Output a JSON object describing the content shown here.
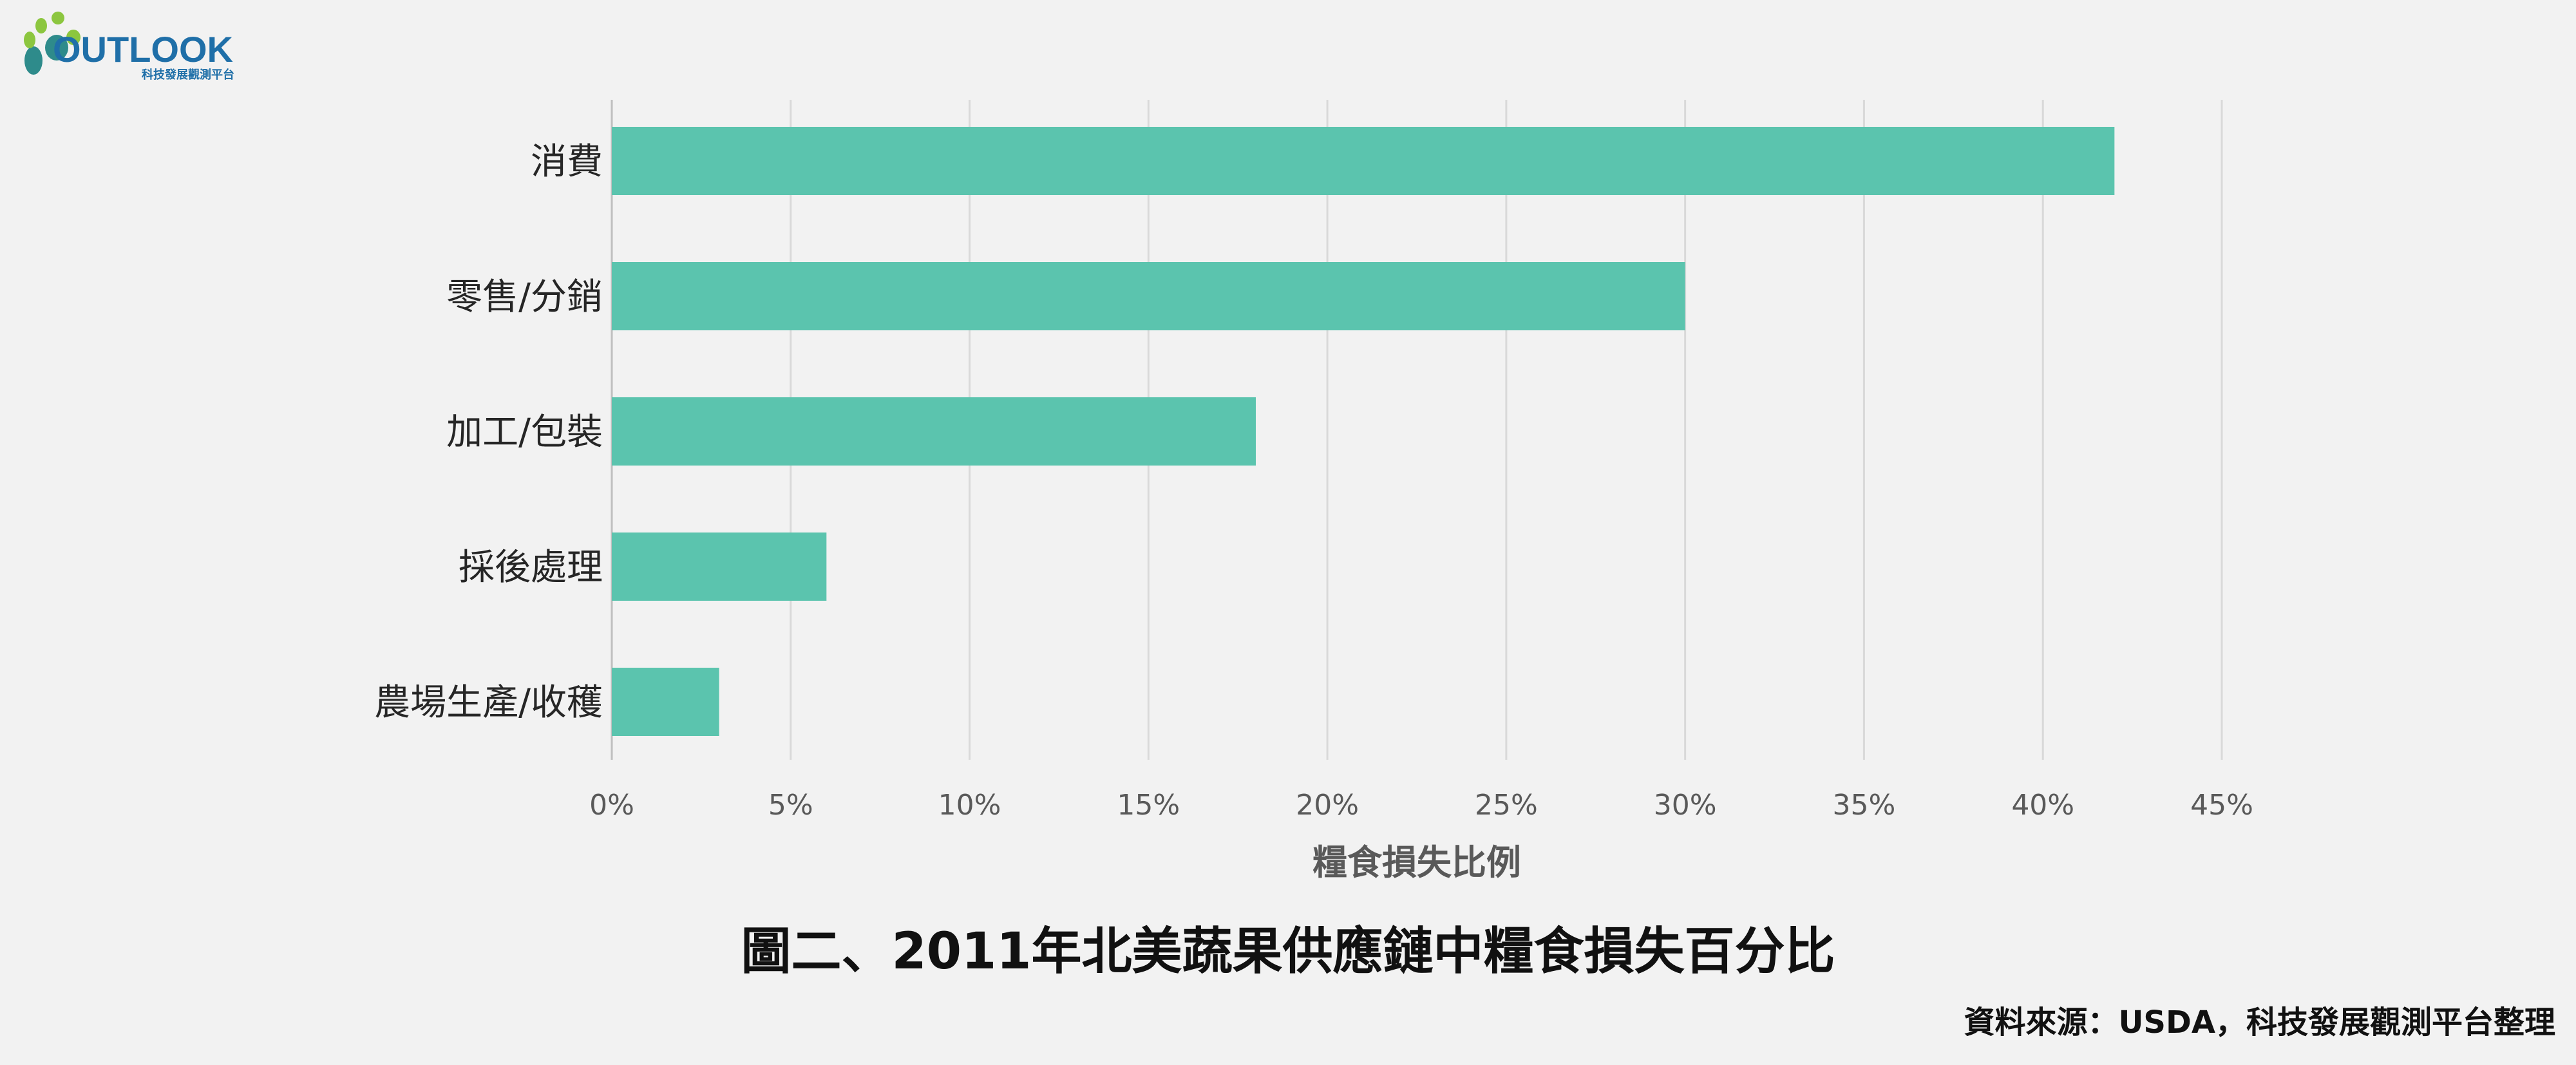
{
  "logo": {
    "wordmark": "OUTLOOK",
    "tagline": "科技發展觀測平台",
    "colors": {
      "dot_green": "#8cc63f",
      "dot_teal": "#2e8b8b",
      "dot_blue": "#1f6fa8",
      "text": "#1f6fa8"
    }
  },
  "chart_data": {
    "type": "bar",
    "orientation": "horizontal",
    "categories": [
      "消費",
      "零售/分銷",
      "加工/包裝",
      "採後處理",
      "農場生產/收穫"
    ],
    "values": [
      42,
      30,
      18,
      6,
      3
    ],
    "unit": "%",
    "xlabel": "糧食損失比例",
    "xlim": [
      0,
      45
    ],
    "xticks": [
      "0%",
      "5%",
      "10%",
      "15%",
      "20%",
      "25%",
      "30%",
      "35%",
      "40%",
      "45%"
    ],
    "grid": "vertical",
    "bar_color": "#5bc4ae",
    "legend": "none"
  },
  "caption": "圖二、2011年北美蔬果供應鏈中糧食損失百分比",
  "source": "資料來源：USDA，科技發展觀測平台整理"
}
